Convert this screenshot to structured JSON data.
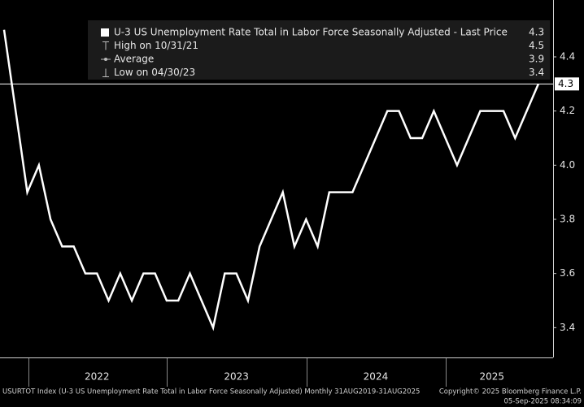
{
  "chart_data": {
    "type": "line",
    "categories": [
      null,
      null,
      null,
      null,
      null,
      null,
      null,
      null,
      "2022",
      null,
      null,
      null,
      null,
      null,
      null,
      null,
      null,
      null,
      null,
      null,
      "2023",
      null,
      null,
      null,
      null,
      null,
      null,
      null,
      null,
      null,
      null,
      null,
      "2024",
      null,
      null,
      null,
      null,
      null,
      null,
      null,
      null,
      null,
      "2025",
      null,
      null,
      null,
      null
    ],
    "series": [
      {
        "name": "U-3 US Unemployment Rate Total in Labor Force Seasonally Adjusted - Last Price",
        "color": "#ffffff",
        "values": [
          4.5,
          4.2,
          3.9,
          4.0,
          3.8,
          3.7,
          3.7,
          3.6,
          3.6,
          3.5,
          3.6,
          3.5,
          3.6,
          3.6,
          3.5,
          3.5,
          3.6,
          3.5,
          3.4,
          3.6,
          3.6,
          3.5,
          3.7,
          3.8,
          3.9,
          3.7,
          3.8,
          3.7,
          3.9,
          3.9,
          3.9,
          4.0,
          4.1,
          4.2,
          4.2,
          4.1,
          4.1,
          4.2,
          4.1,
          4.0,
          4.1,
          4.2,
          4.2,
          4.2,
          4.1,
          4.2,
          4.3
        ]
      }
    ],
    "legend": [
      {
        "label": "U-3 US Unemployment Rate Total in Labor Force Seasonally Adjusted - Last Price",
        "value": 4.3
      },
      {
        "label": "High on 10/31/21",
        "value": 4.5
      },
      {
        "label": "Average",
        "value": 3.9
      },
      {
        "label": "Low on 04/30/23",
        "value": 3.4
      }
    ],
    "ylim": [
      3.29,
      4.61
    ],
    "yticks": [
      3.4,
      3.6,
      3.8,
      4.0,
      4.2,
      4.4
    ],
    "footer": {
      "description": "USURTOT Index (U-3 US Unemployment Rate Total in Labor Force Seasonally Adjusted) Monthly 31AUG2019-31AUG2025",
      "copyright": "Copyright© 2025 Bloomberg Finance L.P.",
      "timestamp": "05-Sep-2025 08:34:09"
    }
  }
}
